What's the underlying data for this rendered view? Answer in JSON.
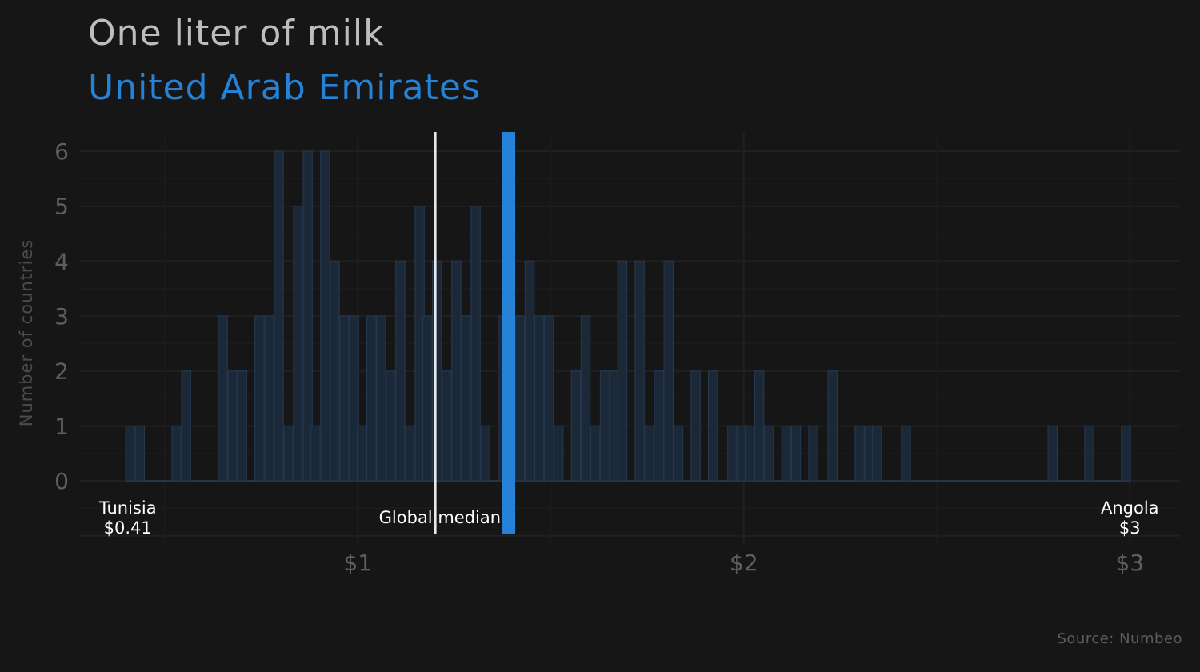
{
  "header": {
    "title": "One liter of milk",
    "subtitle": "United Arab Emirates",
    "source": "Source: Numbeo"
  },
  "colors": {
    "background": "#161616",
    "highlight": "#2582d6",
    "median_line": "#e8e8e8",
    "bar_fill": "#1b2838",
    "bar_stroke": "#25374b",
    "grid": "#1f1f1f"
  },
  "chart_data": {
    "type": "bar",
    "title": "One liter of milk",
    "subtitle": "United Arab Emirates",
    "ylabel": "Number of countries",
    "xlabel": "",
    "xlim": [
      0.28,
      3.13
    ],
    "ylim": [
      -1.15,
      6.35
    ],
    "bin_width": 0.0235,
    "x_ticks": [
      {
        "value": 1,
        "label": "$1"
      },
      {
        "value": 2,
        "label": "$2"
      },
      {
        "value": 3,
        "label": "$3"
      }
    ],
    "y_ticks": [
      {
        "value": 0,
        "label": "0"
      },
      {
        "value": 1,
        "label": "1"
      },
      {
        "value": 2,
        "label": "2"
      },
      {
        "value": 3,
        "label": "3"
      },
      {
        "value": 4,
        "label": "4"
      },
      {
        "value": 5,
        "label": "5"
      },
      {
        "value": 6,
        "label": "6"
      }
    ],
    "bins": [
      {
        "x": 0.41,
        "count": 1
      },
      {
        "x": 0.435,
        "count": 1
      },
      {
        "x": 0.53,
        "count": 1
      },
      {
        "x": 0.555,
        "count": 2
      },
      {
        "x": 0.65,
        "count": 3
      },
      {
        "x": 0.675,
        "count": 2
      },
      {
        "x": 0.7,
        "count": 2
      },
      {
        "x": 0.745,
        "count": 3
      },
      {
        "x": 0.77,
        "count": 3
      },
      {
        "x": 0.795,
        "count": 6
      },
      {
        "x": 0.82,
        "count": 1
      },
      {
        "x": 0.845,
        "count": 5
      },
      {
        "x": 0.87,
        "count": 6
      },
      {
        "x": 0.89,
        "count": 1
      },
      {
        "x": 0.915,
        "count": 6
      },
      {
        "x": 0.94,
        "count": 4
      },
      {
        "x": 0.965,
        "count": 3
      },
      {
        "x": 0.99,
        "count": 3
      },
      {
        "x": 1.01,
        "count": 1
      },
      {
        "x": 1.035,
        "count": 3
      },
      {
        "x": 1.06,
        "count": 3
      },
      {
        "x": 1.085,
        "count": 2
      },
      {
        "x": 1.11,
        "count": 4
      },
      {
        "x": 1.135,
        "count": 1
      },
      {
        "x": 1.16,
        "count": 5
      },
      {
        "x": 1.18,
        "count": 3
      },
      {
        "x": 1.205,
        "count": 4
      },
      {
        "x": 1.23,
        "count": 2
      },
      {
        "x": 1.255,
        "count": 4
      },
      {
        "x": 1.28,
        "count": 3
      },
      {
        "x": 1.305,
        "count": 5
      },
      {
        "x": 1.33,
        "count": 1
      },
      {
        "x": 1.375,
        "count": 3
      },
      {
        "x": 1.4,
        "count": 2
      },
      {
        "x": 1.42,
        "count": 3
      },
      {
        "x": 1.445,
        "count": 4
      },
      {
        "x": 1.47,
        "count": 3
      },
      {
        "x": 1.495,
        "count": 3
      },
      {
        "x": 1.52,
        "count": 1
      },
      {
        "x": 1.565,
        "count": 2
      },
      {
        "x": 1.59,
        "count": 3
      },
      {
        "x": 1.615,
        "count": 1
      },
      {
        "x": 1.64,
        "count": 2
      },
      {
        "x": 1.665,
        "count": 2
      },
      {
        "x": 1.685,
        "count": 4
      },
      {
        "x": 1.73,
        "count": 4
      },
      {
        "x": 1.755,
        "count": 1
      },
      {
        "x": 1.78,
        "count": 2
      },
      {
        "x": 1.805,
        "count": 4
      },
      {
        "x": 1.83,
        "count": 1
      },
      {
        "x": 1.875,
        "count": 2
      },
      {
        "x": 1.92,
        "count": 2
      },
      {
        "x": 1.97,
        "count": 1
      },
      {
        "x": 1.995,
        "count": 1
      },
      {
        "x": 2.015,
        "count": 1
      },
      {
        "x": 2.04,
        "count": 2
      },
      {
        "x": 2.065,
        "count": 1
      },
      {
        "x": 2.11,
        "count": 1
      },
      {
        "x": 2.135,
        "count": 1
      },
      {
        "x": 2.18,
        "count": 1
      },
      {
        "x": 2.23,
        "count": 2
      },
      {
        "x": 2.3,
        "count": 1
      },
      {
        "x": 2.325,
        "count": 1
      },
      {
        "x": 2.345,
        "count": 1
      },
      {
        "x": 2.42,
        "count": 1
      },
      {
        "x": 2.8,
        "count": 1
      },
      {
        "x": 2.895,
        "count": 1
      },
      {
        "x": 2.99,
        "count": 1
      }
    ],
    "baseline": {
      "from": 0.4,
      "to": 3.0
    },
    "global_median": 1.2,
    "highlight_value": 1.39,
    "annotations": {
      "global_median_label": "Global median",
      "min_country": "Tunisia",
      "min_price": "$0.41",
      "min_value": 0.41,
      "max_country": "Angola",
      "max_price": "$3",
      "max_value": 3.0
    }
  }
}
